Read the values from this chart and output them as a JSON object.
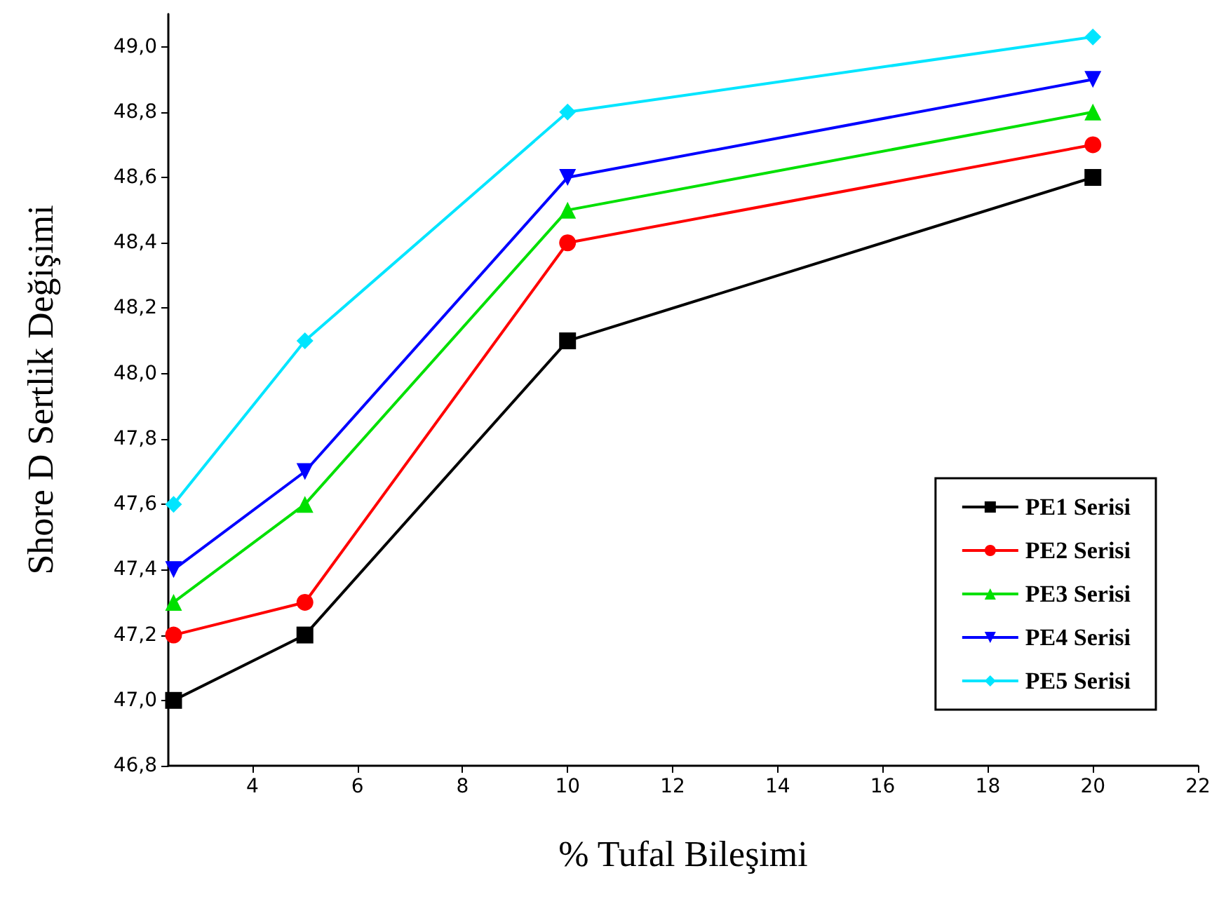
{
  "chart_data": {
    "type": "line",
    "xlabel": "% Tufal Bileşimi",
    "ylabel": "Shore D Sertlik Değişimi",
    "x": [
      2.5,
      5,
      10,
      20
    ],
    "series": [
      {
        "name": "PE1 Serisi",
        "color": "#000000",
        "marker": "square",
        "values": [
          47.0,
          47.2,
          48.1,
          48.6
        ]
      },
      {
        "name": "PE2 Serisi",
        "color": "#ff0000",
        "marker": "circle",
        "values": [
          47.2,
          47.3,
          48.4,
          48.7
        ]
      },
      {
        "name": "PE3 Serisi",
        "color": "#00e000",
        "marker": "triangle",
        "values": [
          47.3,
          47.6,
          48.5,
          48.8
        ]
      },
      {
        "name": "PE4 Serisi",
        "color": "#0000ff",
        "marker": "triangle_down",
        "values": [
          47.4,
          47.7,
          48.6,
          48.9
        ]
      },
      {
        "name": "PE5 Serisi",
        "color": "#00e5ff",
        "marker": "diamond",
        "values": [
          47.6,
          48.1,
          48.8,
          49.03
        ]
      }
    ],
    "xlim": [
      2.4,
      22
    ],
    "xticks": [
      4,
      6,
      8,
      10,
      12,
      14,
      16,
      18,
      20,
      22
    ],
    "ylim": [
      46.8,
      49.1
    ],
    "yticks": [
      {
        "value": 46.8,
        "label": "46,8"
      },
      {
        "value": 47.0,
        "label": "47,0"
      },
      {
        "value": 47.2,
        "label": "47,2"
      },
      {
        "value": 47.4,
        "label": "47,4"
      },
      {
        "value": 47.6,
        "label": "47,6"
      },
      {
        "value": 47.8,
        "label": "47,8"
      },
      {
        "value": 48.0,
        "label": "48,0"
      },
      {
        "value": 48.2,
        "label": "48,2"
      },
      {
        "value": 48.4,
        "label": "48,4"
      },
      {
        "value": 48.6,
        "label": "48,6"
      },
      {
        "value": 48.8,
        "label": "48,8"
      },
      {
        "value": 49.0,
        "label": "49,0"
      }
    ],
    "grid": false,
    "legend": "bottom right",
    "line_style": "solid"
  }
}
